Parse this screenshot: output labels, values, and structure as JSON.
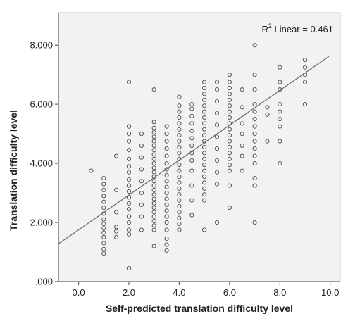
{
  "chart_data": {
    "type": "scatter",
    "title": "",
    "xlabel": "Self-predicted translation difficulty level",
    "ylabel": "Translation difficulty level",
    "xlim": [
      -0.8,
      10.4
    ],
    "ylim": [
      0,
      9.1
    ],
    "x_ticks": [
      0,
      2,
      4,
      6,
      8,
      10
    ],
    "x_tick_labels": [
      "0.0",
      "2.0",
      "4.0",
      "6.0",
      "8.0",
      "10.0"
    ],
    "y_ticks": [
      0,
      2,
      4,
      6,
      8
    ],
    "y_tick_labels": [
      ".000",
      "2.000",
      "4.000",
      "6.000",
      "8.000"
    ],
    "grid": false,
    "plot_background": "#f2f2f2",
    "point_color": "#555555",
    "line_color": "#666666",
    "annotation": {
      "label_prefix": "R",
      "label_sup": "2",
      "label_suffix": " Linear = 0.461"
    },
    "fit_line": {
      "intercept": 1.75,
      "slope": 0.59,
      "x_range": [
        -0.8,
        9.95
      ]
    },
    "points": [
      {
        "x": 0.5,
        "y": 3.75
      },
      {
        "x": 1.0,
        "y": 0.95
      },
      {
        "x": 1.0,
        "y": 1.1
      },
      {
        "x": 1.0,
        "y": 1.3
      },
      {
        "x": 1.0,
        "y": 1.5
      },
      {
        "x": 1.0,
        "y": 1.65
      },
      {
        "x": 1.0,
        "y": 1.8
      },
      {
        "x": 1.0,
        "y": 1.95
      },
      {
        "x": 1.0,
        "y": 2.1
      },
      {
        "x": 1.0,
        "y": 2.3
      },
      {
        "x": 1.0,
        "y": 2.5
      },
      {
        "x": 1.0,
        "y": 2.7
      },
      {
        "x": 1.0,
        "y": 2.9
      },
      {
        "x": 1.0,
        "y": 3.1
      },
      {
        "x": 1.0,
        "y": 3.3
      },
      {
        "x": 1.0,
        "y": 3.5
      },
      {
        "x": 1.5,
        "y": 1.5
      },
      {
        "x": 1.5,
        "y": 1.7
      },
      {
        "x": 1.5,
        "y": 1.85
      },
      {
        "x": 1.5,
        "y": 2.35
      },
      {
        "x": 1.5,
        "y": 3.1
      },
      {
        "x": 1.5,
        "y": 4.25
      },
      {
        "x": 2.0,
        "y": 0.45
      },
      {
        "x": 2.0,
        "y": 1.6
      },
      {
        "x": 2.0,
        "y": 1.75
      },
      {
        "x": 2.0,
        "y": 2.0
      },
      {
        "x": 2.0,
        "y": 2.2
      },
      {
        "x": 2.0,
        "y": 2.45
      },
      {
        "x": 2.0,
        "y": 2.65
      },
      {
        "x": 2.0,
        "y": 2.85
      },
      {
        "x": 2.0,
        "y": 3.05
      },
      {
        "x": 2.0,
        "y": 3.25
      },
      {
        "x": 2.0,
        "y": 3.45
      },
      {
        "x": 2.0,
        "y": 3.7
      },
      {
        "x": 2.0,
        "y": 3.9
      },
      {
        "x": 2.0,
        "y": 4.15
      },
      {
        "x": 2.0,
        "y": 4.45
      },
      {
        "x": 2.0,
        "y": 4.75
      },
      {
        "x": 2.0,
        "y": 5.0
      },
      {
        "x": 2.0,
        "y": 5.25
      },
      {
        "x": 2.0,
        "y": 6.75
      },
      {
        "x": 2.5,
        "y": 1.75
      },
      {
        "x": 2.5,
        "y": 2.2
      },
      {
        "x": 2.5,
        "y": 2.6
      },
      {
        "x": 2.5,
        "y": 3.0
      },
      {
        "x": 2.5,
        "y": 3.4
      },
      {
        "x": 2.5,
        "y": 3.8
      },
      {
        "x": 2.5,
        "y": 4.2
      },
      {
        "x": 2.5,
        "y": 4.6
      },
      {
        "x": 2.5,
        "y": 5.0
      },
      {
        "x": 3.0,
        "y": 1.2
      },
      {
        "x": 3.0,
        "y": 1.75
      },
      {
        "x": 3.0,
        "y": 1.9
      },
      {
        "x": 3.0,
        "y": 2.05
      },
      {
        "x": 3.0,
        "y": 2.2
      },
      {
        "x": 3.0,
        "y": 2.35
      },
      {
        "x": 3.0,
        "y": 2.5
      },
      {
        "x": 3.0,
        "y": 2.65
      },
      {
        "x": 3.0,
        "y": 2.8
      },
      {
        "x": 3.0,
        "y": 2.95
      },
      {
        "x": 3.0,
        "y": 3.1
      },
      {
        "x": 3.0,
        "y": 3.25
      },
      {
        "x": 3.0,
        "y": 3.4
      },
      {
        "x": 3.0,
        "y": 3.55
      },
      {
        "x": 3.0,
        "y": 3.7
      },
      {
        "x": 3.0,
        "y": 3.85
      },
      {
        "x": 3.0,
        "y": 4.0
      },
      {
        "x": 3.0,
        "y": 4.15
      },
      {
        "x": 3.0,
        "y": 4.3
      },
      {
        "x": 3.0,
        "y": 4.45
      },
      {
        "x": 3.0,
        "y": 4.6
      },
      {
        "x": 3.0,
        "y": 4.75
      },
      {
        "x": 3.0,
        "y": 4.9
      },
      {
        "x": 3.0,
        "y": 5.05
      },
      {
        "x": 3.0,
        "y": 5.2
      },
      {
        "x": 3.0,
        "y": 5.4
      },
      {
        "x": 3.0,
        "y": 6.5
      },
      {
        "x": 3.5,
        "y": 1.05
      },
      {
        "x": 3.5,
        "y": 1.25
      },
      {
        "x": 3.5,
        "y": 1.45
      },
      {
        "x": 3.5,
        "y": 1.75
      },
      {
        "x": 3.5,
        "y": 2.0
      },
      {
        "x": 3.5,
        "y": 2.2
      },
      {
        "x": 3.5,
        "y": 2.4
      },
      {
        "x": 3.5,
        "y": 2.6
      },
      {
        "x": 3.5,
        "y": 2.8
      },
      {
        "x": 3.5,
        "y": 3.0
      },
      {
        "x": 3.5,
        "y": 3.2
      },
      {
        "x": 3.5,
        "y": 3.4
      },
      {
        "x": 3.5,
        "y": 3.6
      },
      {
        "x": 3.5,
        "y": 3.8
      },
      {
        "x": 3.5,
        "y": 4.0
      },
      {
        "x": 3.5,
        "y": 4.25
      },
      {
        "x": 3.5,
        "y": 4.5
      },
      {
        "x": 3.5,
        "y": 4.75
      },
      {
        "x": 3.5,
        "y": 5.0
      },
      {
        "x": 3.5,
        "y": 5.25
      },
      {
        "x": 4.0,
        "y": 1.75
      },
      {
        "x": 4.0,
        "y": 1.95
      },
      {
        "x": 4.0,
        "y": 2.15
      },
      {
        "x": 4.0,
        "y": 2.35
      },
      {
        "x": 4.0,
        "y": 2.55
      },
      {
        "x": 4.0,
        "y": 2.75
      },
      {
        "x": 4.0,
        "y": 2.95
      },
      {
        "x": 4.0,
        "y": 3.15
      },
      {
        "x": 4.0,
        "y": 3.35
      },
      {
        "x": 4.0,
        "y": 3.55
      },
      {
        "x": 4.0,
        "y": 3.75
      },
      {
        "x": 4.0,
        "y": 3.95
      },
      {
        "x": 4.0,
        "y": 4.15
      },
      {
        "x": 4.0,
        "y": 4.35
      },
      {
        "x": 4.0,
        "y": 4.55
      },
      {
        "x": 4.0,
        "y": 4.75
      },
      {
        "x": 4.0,
        "y": 4.95
      },
      {
        "x": 4.0,
        "y": 5.15
      },
      {
        "x": 4.0,
        "y": 5.35
      },
      {
        "x": 4.0,
        "y": 5.55
      },
      {
        "x": 4.0,
        "y": 5.75
      },
      {
        "x": 4.0,
        "y": 5.95
      },
      {
        "x": 4.0,
        "y": 6.25
      },
      {
        "x": 4.5,
        "y": 2.25
      },
      {
        "x": 4.5,
        "y": 2.75
      },
      {
        "x": 4.5,
        "y": 3.25
      },
      {
        "x": 4.5,
        "y": 3.75
      },
      {
        "x": 4.5,
        "y": 4.1
      },
      {
        "x": 4.5,
        "y": 4.35
      },
      {
        "x": 4.5,
        "y": 4.6
      },
      {
        "x": 4.5,
        "y": 4.85
      },
      {
        "x": 4.5,
        "y": 5.1
      },
      {
        "x": 4.5,
        "y": 5.35
      },
      {
        "x": 4.5,
        "y": 5.6
      },
      {
        "x": 4.5,
        "y": 5.85
      },
      {
        "x": 4.5,
        "y": 6.0
      },
      {
        "x": 5.0,
        "y": 1.75
      },
      {
        "x": 5.0,
        "y": 2.75
      },
      {
        "x": 5.0,
        "y": 2.95
      },
      {
        "x": 5.0,
        "y": 3.15
      },
      {
        "x": 5.0,
        "y": 3.35
      },
      {
        "x": 5.0,
        "y": 3.55
      },
      {
        "x": 5.0,
        "y": 3.75
      },
      {
        "x": 5.0,
        "y": 3.95
      },
      {
        "x": 5.0,
        "y": 4.15
      },
      {
        "x": 5.0,
        "y": 4.35
      },
      {
        "x": 5.0,
        "y": 4.55
      },
      {
        "x": 5.0,
        "y": 4.75
      },
      {
        "x": 5.0,
        "y": 4.95
      },
      {
        "x": 5.0,
        "y": 5.15
      },
      {
        "x": 5.0,
        "y": 5.35
      },
      {
        "x": 5.0,
        "y": 5.55
      },
      {
        "x": 5.0,
        "y": 5.75
      },
      {
        "x": 5.0,
        "y": 5.95
      },
      {
        "x": 5.0,
        "y": 6.15
      },
      {
        "x": 5.0,
        "y": 6.35
      },
      {
        "x": 5.0,
        "y": 6.55
      },
      {
        "x": 5.0,
        "y": 6.75
      },
      {
        "x": 5.5,
        "y": 2.0
      },
      {
        "x": 5.5,
        "y": 3.3
      },
      {
        "x": 5.5,
        "y": 3.7
      },
      {
        "x": 5.5,
        "y": 4.1
      },
      {
        "x": 5.5,
        "y": 4.5
      },
      {
        "x": 5.5,
        "y": 4.9
      },
      {
        "x": 5.5,
        "y": 5.3
      },
      {
        "x": 5.5,
        "y": 5.7
      },
      {
        "x": 5.5,
        "y": 6.1
      },
      {
        "x": 5.5,
        "y": 6.5
      },
      {
        "x": 5.5,
        "y": 6.75
      },
      {
        "x": 6.0,
        "y": 2.5
      },
      {
        "x": 6.0,
        "y": 3.25
      },
      {
        "x": 6.0,
        "y": 3.75
      },
      {
        "x": 6.0,
        "y": 3.95
      },
      {
        "x": 6.0,
        "y": 4.15
      },
      {
        "x": 6.0,
        "y": 4.35
      },
      {
        "x": 6.0,
        "y": 4.55
      },
      {
        "x": 6.0,
        "y": 4.75
      },
      {
        "x": 6.0,
        "y": 4.95
      },
      {
        "x": 6.0,
        "y": 5.15
      },
      {
        "x": 6.0,
        "y": 5.35
      },
      {
        "x": 6.0,
        "y": 5.55
      },
      {
        "x": 6.0,
        "y": 5.75
      },
      {
        "x": 6.0,
        "y": 5.95
      },
      {
        "x": 6.0,
        "y": 6.15
      },
      {
        "x": 6.0,
        "y": 6.35
      },
      {
        "x": 6.0,
        "y": 6.55
      },
      {
        "x": 6.0,
        "y": 6.75
      },
      {
        "x": 6.0,
        "y": 7.0
      },
      {
        "x": 6.5,
        "y": 3.75
      },
      {
        "x": 6.5,
        "y": 4.25
      },
      {
        "x": 6.5,
        "y": 4.6
      },
      {
        "x": 6.5,
        "y": 5.0
      },
      {
        "x": 6.5,
        "y": 5.35
      },
      {
        "x": 6.5,
        "y": 5.9
      },
      {
        "x": 6.5,
        "y": 6.5
      },
      {
        "x": 7.0,
        "y": 2.0
      },
      {
        "x": 7.0,
        "y": 3.25
      },
      {
        "x": 7.0,
        "y": 3.5
      },
      {
        "x": 7.0,
        "y": 4.0
      },
      {
        "x": 7.0,
        "y": 4.25
      },
      {
        "x": 7.0,
        "y": 4.5
      },
      {
        "x": 7.0,
        "y": 4.75
      },
      {
        "x": 7.0,
        "y": 5.0
      },
      {
        "x": 7.0,
        "y": 5.25
      },
      {
        "x": 7.0,
        "y": 5.5
      },
      {
        "x": 7.0,
        "y": 5.75
      },
      {
        "x": 7.0,
        "y": 6.0
      },
      {
        "x": 7.0,
        "y": 6.5
      },
      {
        "x": 7.0,
        "y": 7.0
      },
      {
        "x": 7.0,
        "y": 8.0
      },
      {
        "x": 7.5,
        "y": 4.75
      },
      {
        "x": 7.5,
        "y": 5.65
      },
      {
        "x": 7.5,
        "y": 5.9
      },
      {
        "x": 8.0,
        "y": 4.0
      },
      {
        "x": 8.0,
        "y": 4.75
      },
      {
        "x": 8.0,
        "y": 5.25
      },
      {
        "x": 8.0,
        "y": 5.5
      },
      {
        "x": 8.0,
        "y": 5.75
      },
      {
        "x": 8.0,
        "y": 6.0
      },
      {
        "x": 8.0,
        "y": 6.5
      },
      {
        "x": 8.0,
        "y": 6.75
      },
      {
        "x": 8.0,
        "y": 7.25
      },
      {
        "x": 9.0,
        "y": 6.0
      },
      {
        "x": 9.0,
        "y": 6.75
      },
      {
        "x": 9.0,
        "y": 7.0
      },
      {
        "x": 9.0,
        "y": 7.25
      },
      {
        "x": 9.0,
        "y": 7.5
      }
    ]
  }
}
